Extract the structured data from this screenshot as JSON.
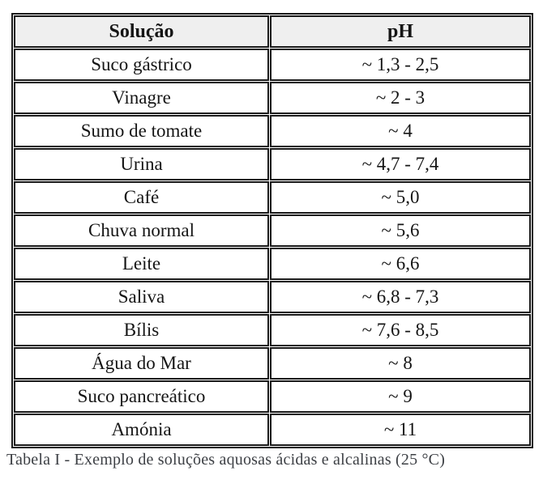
{
  "table": {
    "headers": [
      {
        "label": "Solução"
      },
      {
        "label": "pH"
      }
    ],
    "rows": [
      {
        "solution": "Suco gástrico",
        "ph": "~ 1,3 - 2,5"
      },
      {
        "solution": "Vinagre",
        "ph": "~ 2 - 3"
      },
      {
        "solution": "Sumo de tomate",
        "ph": "~ 4"
      },
      {
        "solution": "Urina",
        "ph": "~ 4,7 - 7,4"
      },
      {
        "solution": "Café",
        "ph": "~ 5,0"
      },
      {
        "solution": "Chuva normal",
        "ph": "~ 5,6"
      },
      {
        "solution": "Leite",
        "ph": "~ 6,6"
      },
      {
        "solution": "Saliva",
        "ph": "~ 6,8 - 7,3"
      },
      {
        "solution": "Bílis",
        "ph": "~ 7,6 - 8,5"
      },
      {
        "solution": "Água do Mar",
        "ph": "~ 8"
      },
      {
        "solution": "Suco pancreático",
        "ph": "~ 9"
      },
      {
        "solution": "Amónia",
        "ph": "~ 11"
      }
    ],
    "caption": "Tabela I - Exemplo de soluções aquosas ácidas e alcalinas (25 °C)"
  },
  "colors": {
    "border": "#1a1a1a",
    "header_bg": "#efefef",
    "text": "#151515",
    "caption_text": "#3d4045"
  }
}
